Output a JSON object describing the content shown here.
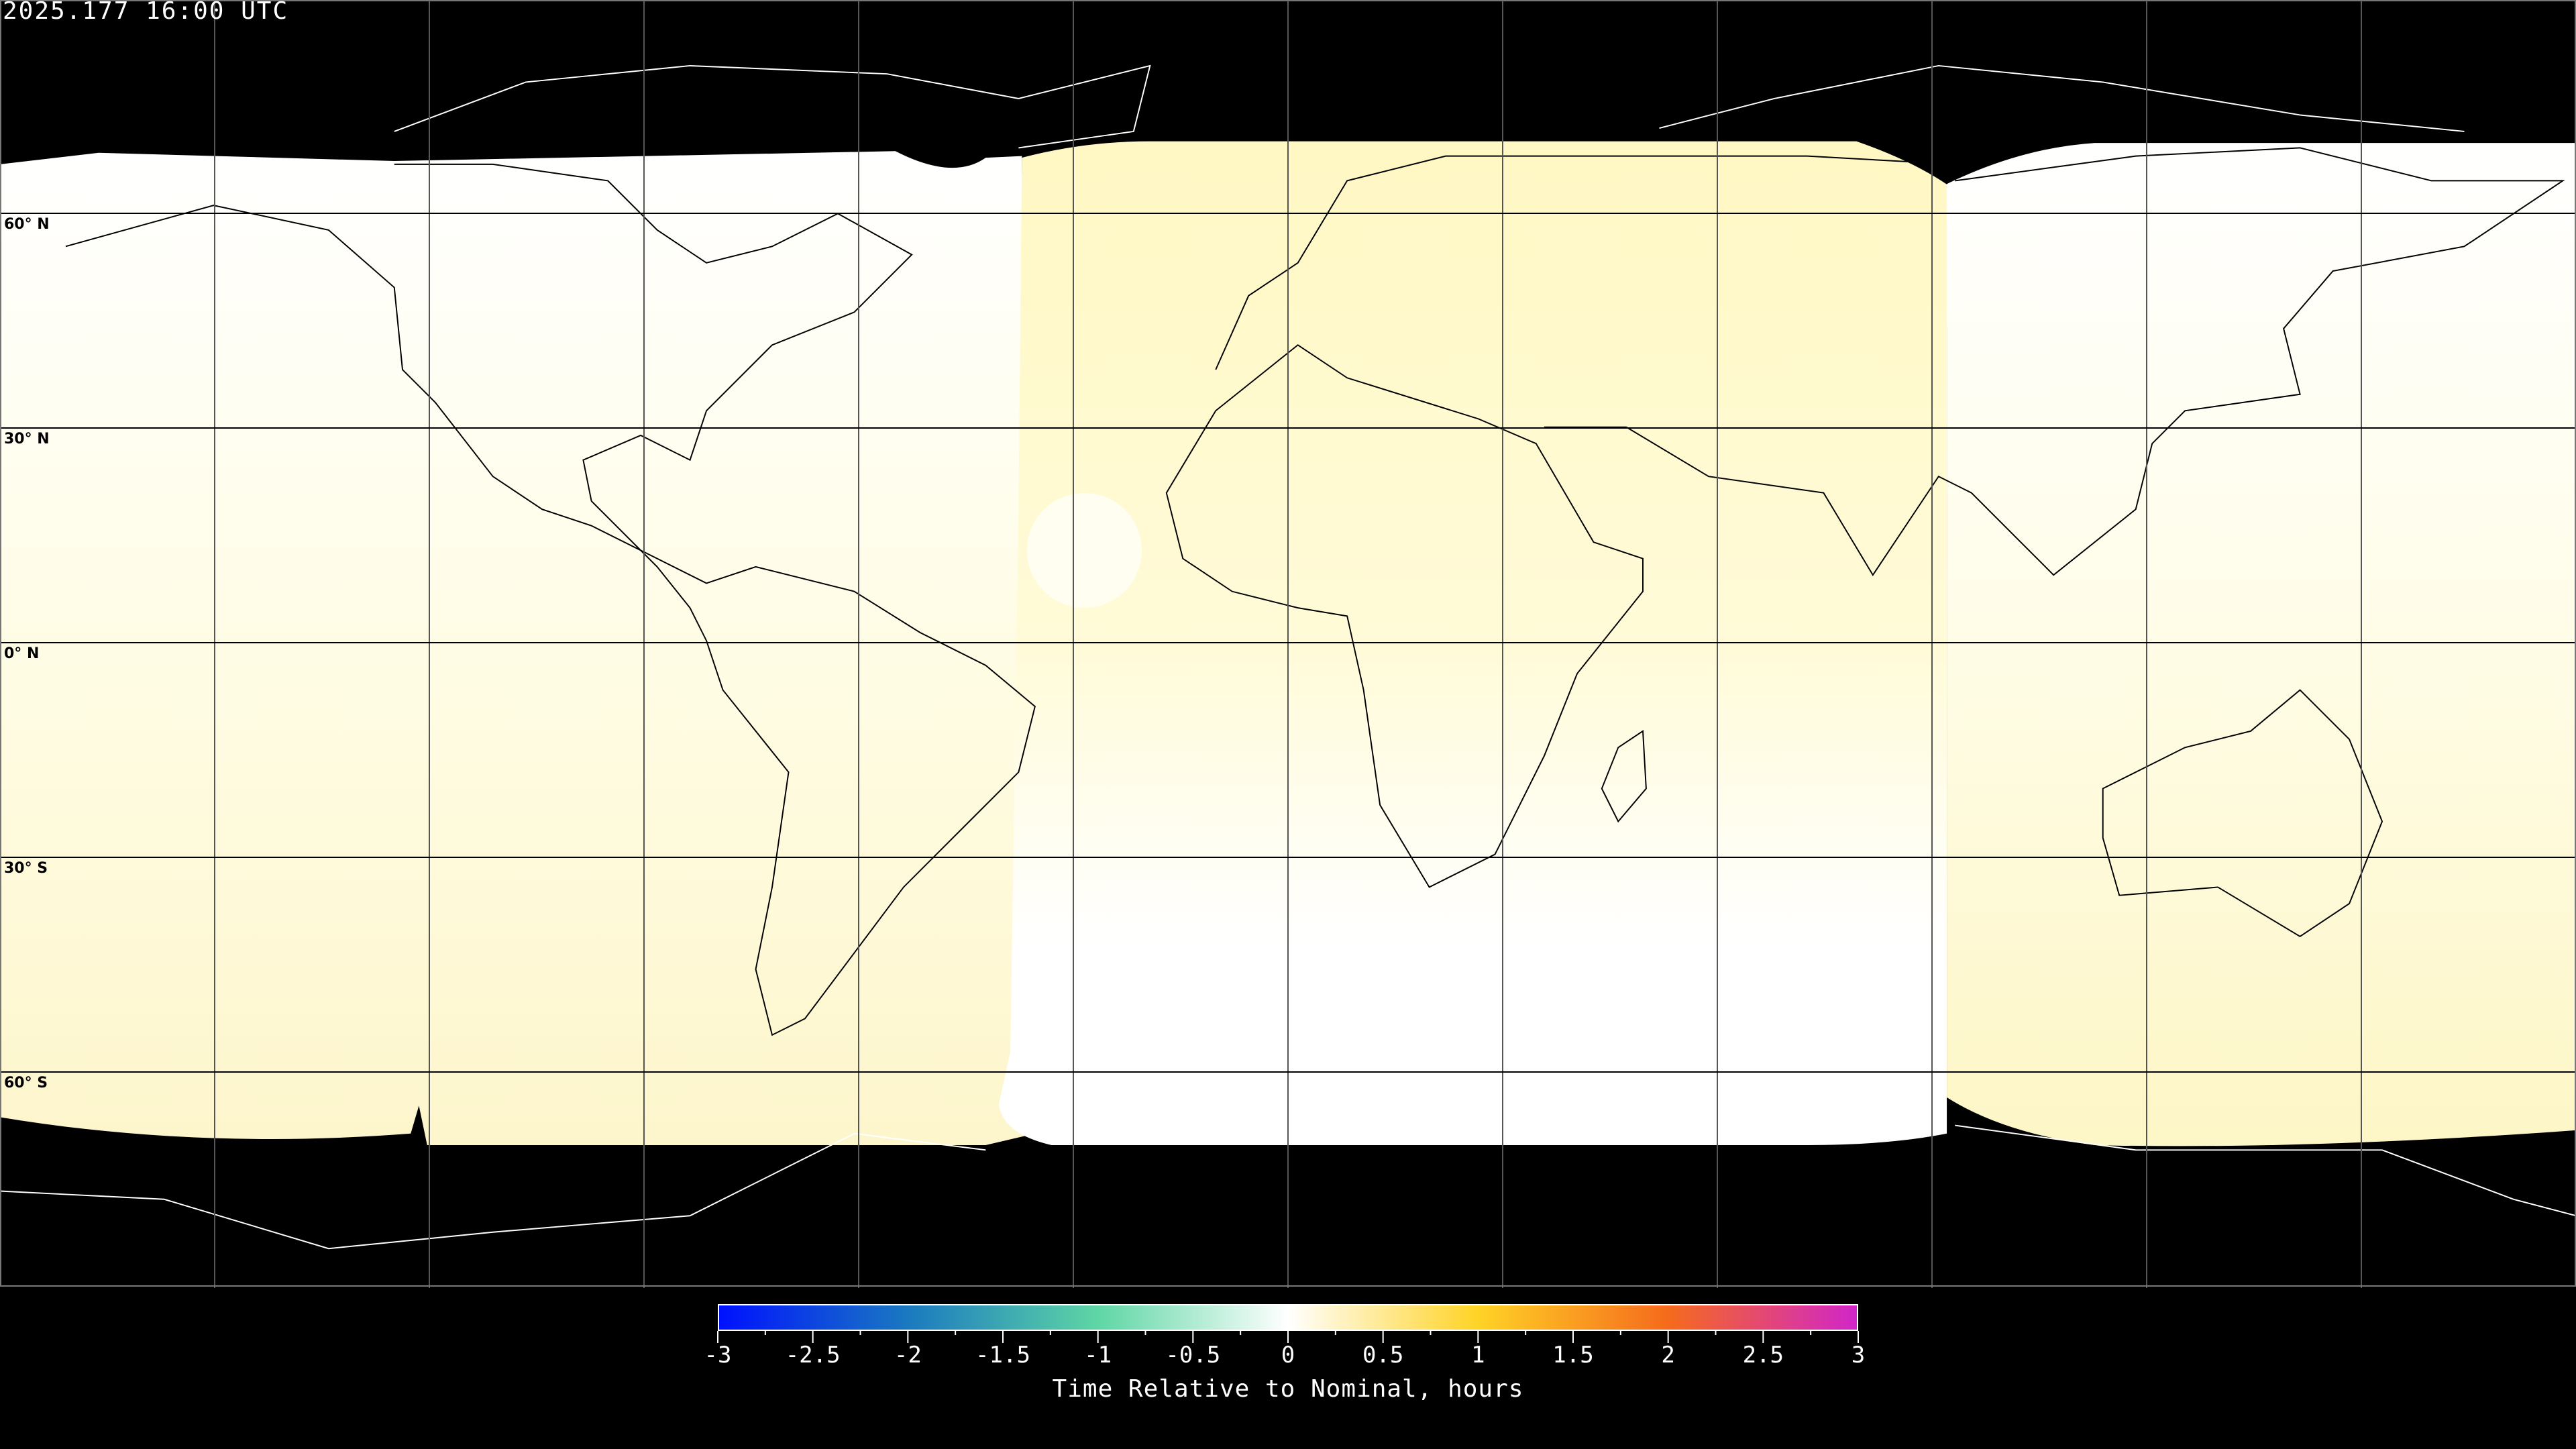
{
  "header": {
    "timestamp": "2025.177 16:00 UTC"
  },
  "map": {
    "projection": "equirectangular",
    "lat_labels": [
      "60° N",
      "30° N",
      "0° N",
      "30° S",
      "60° S"
    ],
    "colors": {
      "background": "#000000",
      "nominal": "#ffffff",
      "positive_small": "#fffac8",
      "grid": "#000000"
    }
  },
  "colorbar": {
    "title": "Time Relative to Nominal, hours",
    "ticks": [
      "-3",
      "-2.5",
      "-2",
      "-1.5",
      "-1",
      "-0.5",
      "0",
      "0.5",
      "1",
      "1.5",
      "2",
      "2.5",
      "3"
    ],
    "range": [
      -3,
      3
    ],
    "colors": [
      "#0011ff",
      "#1a7abf",
      "#5fd6a5",
      "#ffffff",
      "#ffd326",
      "#f56b1c",
      "#d126c9"
    ]
  }
}
